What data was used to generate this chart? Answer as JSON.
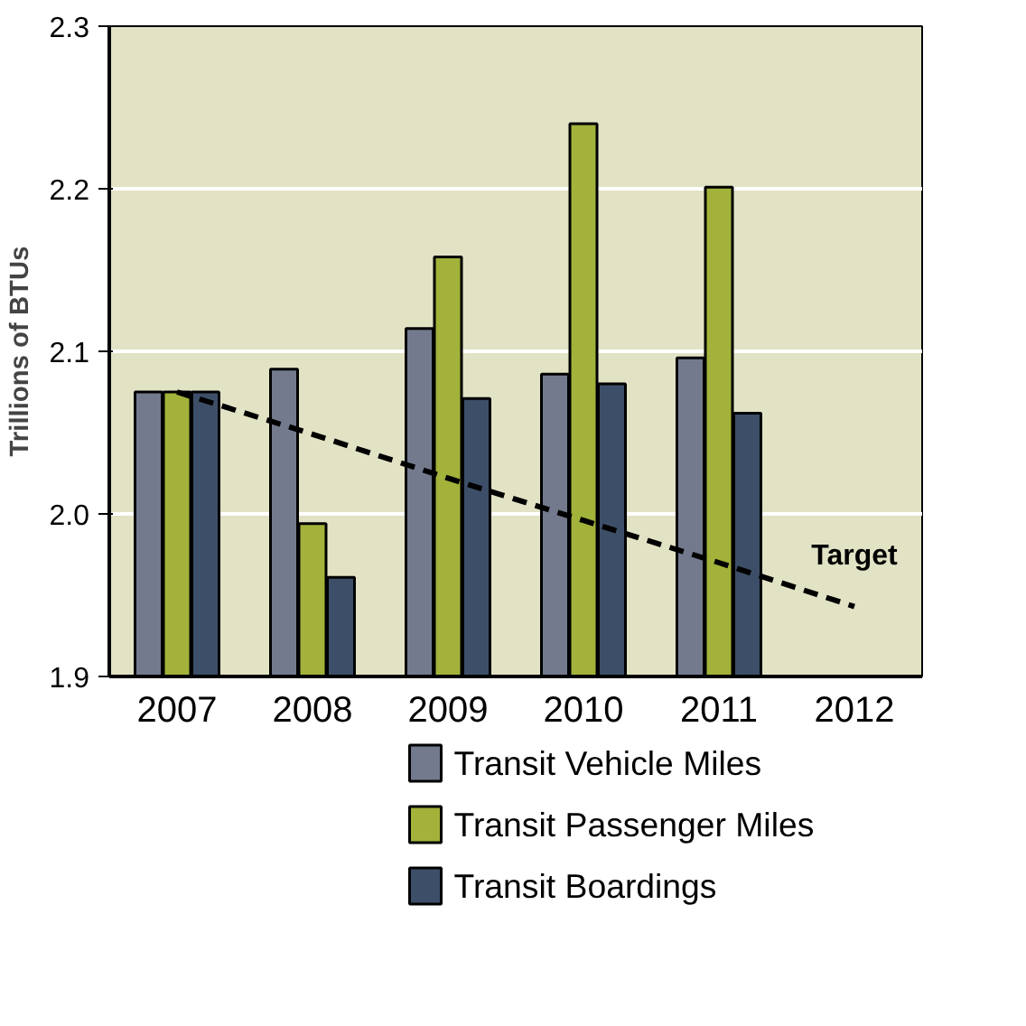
{
  "chart_data": {
    "type": "bar",
    "ylabel": "Trillions of BTUs",
    "categories": [
      "2007",
      "2008",
      "2009",
      "2010",
      "2011",
      "2012"
    ],
    "series": [
      {
        "name": "Transit Vehicle Miles",
        "color": "#737a8e",
        "values": [
          2.075,
          2.089,
          2.114,
          2.086,
          2.096,
          null
        ]
      },
      {
        "name": "Transit Passenger Miles",
        "color": "#a3b23a",
        "values": [
          2.075,
          1.994,
          2.158,
          2.24,
          2.201,
          null
        ]
      },
      {
        "name": "Transit Boardings",
        "color": "#3d4f68",
        "values": [
          2.075,
          1.961,
          2.071,
          2.08,
          2.062,
          null
        ]
      },
      {
        "type": "line",
        "color": "#000000",
        "line_style": "dashed",
        "values": [
          2.075,
          2.049,
          2.022,
          1.996,
          1.97,
          1.943
        ]
      }
    ],
    "annotations": [
      "Target"
    ],
    "ylim": [
      1.9,
      2.3
    ],
    "yticks": [
      1.9,
      {
        "value": 2.0,
        "label": "2.0"
      },
      2.1,
      2.2,
      2.3
    ],
    "grid": "y",
    "legend": "bottom"
  }
}
